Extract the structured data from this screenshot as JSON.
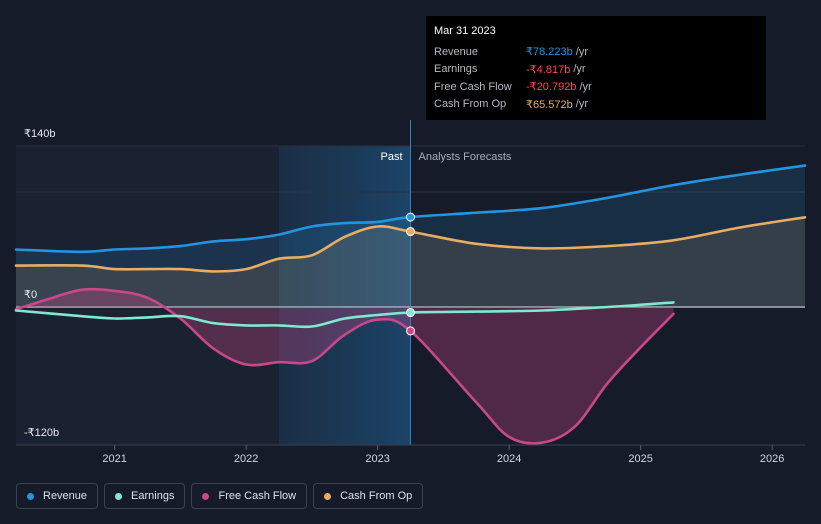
{
  "chart_data": {
    "type": "area",
    "y_axis": {
      "labels": [
        "₹140b",
        "₹0",
        "-₹120b"
      ],
      "ylim": [
        -120,
        140
      ]
    },
    "x_axis": {
      "ticks": [
        2021,
        2022,
        2023,
        2024,
        2025,
        2026
      ],
      "xlim": [
        2020.25,
        2026.25
      ]
    },
    "regions": {
      "past_label": "Past",
      "forecast_label": "Analysts Forecasts",
      "divider_x": 2023.25,
      "highlight_start_x": 2022.25
    },
    "series": [
      {
        "name": "Revenue",
        "color": "#2394df",
        "fill": true,
        "points": [
          [
            2020.25,
            50
          ],
          [
            2020.75,
            48
          ],
          [
            2021.0,
            50
          ],
          [
            2021.25,
            51
          ],
          [
            2021.5,
            53
          ],
          [
            2021.75,
            57
          ],
          [
            2022.0,
            59
          ],
          [
            2022.25,
            63
          ],
          [
            2022.5,
            70
          ],
          [
            2022.75,
            73
          ],
          [
            2023.0,
            74
          ],
          [
            2023.25,
            78.2
          ],
          [
            2023.75,
            82
          ],
          [
            2024.25,
            86
          ],
          [
            2024.75,
            95
          ],
          [
            2025.25,
            106
          ],
          [
            2025.75,
            115
          ],
          [
            2026.25,
            123
          ]
        ]
      },
      {
        "name": "Earnings",
        "color": "#7fe8cf",
        "fill": false,
        "points": [
          [
            2020.25,
            -3
          ],
          [
            2020.75,
            -8
          ],
          [
            2021.0,
            -10
          ],
          [
            2021.25,
            -9
          ],
          [
            2021.5,
            -8
          ],
          [
            2021.75,
            -14
          ],
          [
            2022.0,
            -16
          ],
          [
            2022.25,
            -16
          ],
          [
            2022.5,
            -17
          ],
          [
            2022.75,
            -10
          ],
          [
            2023.0,
            -7
          ],
          [
            2023.25,
            -4.8
          ],
          [
            2023.75,
            -4
          ],
          [
            2024.25,
            -3
          ],
          [
            2024.75,
            0
          ],
          [
            2025.25,
            4
          ]
        ]
      },
      {
        "name": "Free Cash Flow",
        "color": "#c9478a",
        "fill": true,
        "points": [
          [
            2020.25,
            -2
          ],
          [
            2020.5,
            7
          ],
          [
            2020.75,
            15
          ],
          [
            2021.0,
            14
          ],
          [
            2021.25,
            8
          ],
          [
            2021.5,
            -10
          ],
          [
            2021.75,
            -36
          ],
          [
            2022.0,
            -50
          ],
          [
            2022.25,
            -48
          ],
          [
            2022.5,
            -47
          ],
          [
            2022.75,
            -24
          ],
          [
            2023.0,
            -11
          ],
          [
            2023.25,
            -20.8
          ],
          [
            2023.75,
            -83
          ],
          [
            2024.0,
            -113
          ],
          [
            2024.25,
            -118
          ],
          [
            2024.5,
            -104
          ],
          [
            2024.75,
            -66
          ],
          [
            2025.0,
            -35
          ],
          [
            2025.25,
            -6
          ]
        ]
      },
      {
        "name": "Cash From Op",
        "color": "#e9ac63",
        "fill": true,
        "points": [
          [
            2020.25,
            36
          ],
          [
            2020.75,
            36
          ],
          [
            2021.0,
            33
          ],
          [
            2021.25,
            33
          ],
          [
            2021.5,
            33
          ],
          [
            2021.75,
            31
          ],
          [
            2022.0,
            33
          ],
          [
            2022.25,
            42
          ],
          [
            2022.5,
            45
          ],
          [
            2022.75,
            61
          ],
          [
            2023.0,
            70
          ],
          [
            2023.25,
            65.6
          ],
          [
            2023.75,
            55
          ],
          [
            2024.25,
            51
          ],
          [
            2024.75,
            53
          ],
          [
            2025.25,
            58
          ],
          [
            2025.75,
            69
          ],
          [
            2026.25,
            78
          ]
        ]
      }
    ]
  },
  "tooltip": {
    "date": "Mar 31 2023",
    "rows": [
      {
        "name": "Revenue",
        "value": "₹78.223b",
        "unit": "/yr",
        "color": "#2394df"
      },
      {
        "name": "Earnings",
        "value": "-₹4.817b",
        "unit": "/yr",
        "color": "#ff4a4a"
      },
      {
        "name": "Free Cash Flow",
        "value": "-₹20.792b",
        "unit": "/yr",
        "color": "#ff4a4a"
      },
      {
        "name": "Cash From Op",
        "value": "₹65.572b",
        "unit": "/yr",
        "color": "#e9ac63"
      }
    ]
  },
  "legend": [
    {
      "label": "Revenue",
      "color": "#2394df"
    },
    {
      "label": "Earnings",
      "color": "#7fe8cf"
    },
    {
      "label": "Free Cash Flow",
      "color": "#c9478a"
    },
    {
      "label": "Cash From Op",
      "color": "#e9ac63"
    }
  ]
}
